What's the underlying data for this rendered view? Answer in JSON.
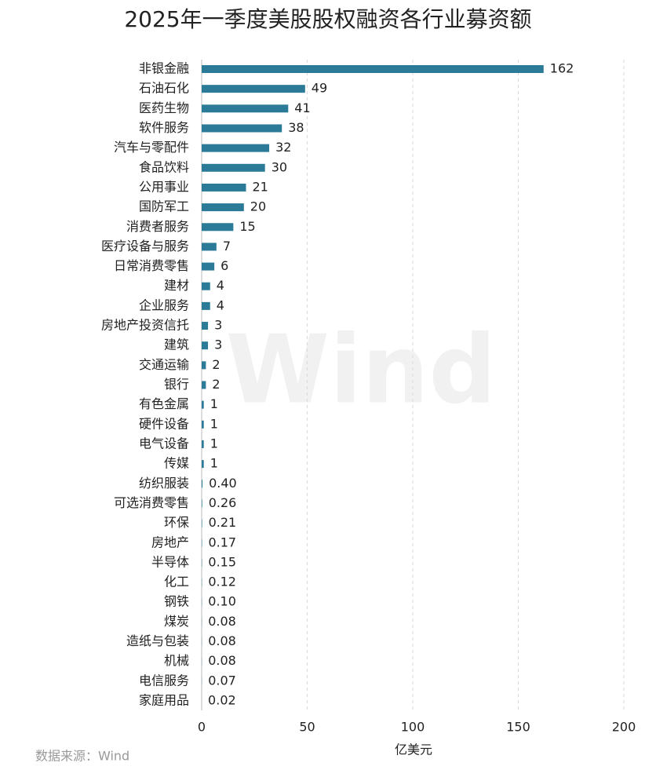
{
  "chart_data": {
    "type": "barh",
    "title": "2025年一季度美股股权融资各行业募资额",
    "x_label": "亿美元",
    "source": "数据来源：Wind",
    "watermark": "Wind",
    "color": "#2b7a98",
    "categories": [
      "非银金融",
      "石油石化",
      "医药生物",
      "软件服务",
      "汽车与零配件",
      "食品饮料",
      "公用事业",
      "国防军工",
      "消费者服务",
      "医疗设备与服务",
      "日常消费零售",
      "建材",
      "企业服务",
      "房地产投资信托",
      "建筑",
      "交通运输",
      "银行",
      "有色金属",
      "硬件设备",
      "电气设备",
      "传媒",
      "纺织服装",
      "可选消费零售",
      "环保",
      "房地产",
      "半导体",
      "化工",
      "钢铁",
      "煤炭",
      "造纸与包装",
      "机械",
      "电信服务",
      "家庭用品"
    ],
    "values": [
      162,
      49,
      41,
      38,
      32,
      30,
      21,
      20,
      15,
      7,
      6,
      4,
      4,
      3,
      3,
      2,
      2,
      1,
      1,
      1,
      1,
      0.4,
      0.26,
      0.21,
      0.17,
      0.15,
      0.12,
      0.1,
      0.08,
      0.08,
      0.08,
      0.07,
      0.02
    ],
    "value_labels": [
      "162",
      "49",
      "41",
      "38",
      "32",
      "30",
      "21",
      "20",
      "15",
      "7",
      "6",
      "4",
      "4",
      "3",
      "3",
      "2",
      "2",
      "1",
      "1",
      "1",
      "1",
      "0.40",
      "0.26",
      "0.21",
      "0.17",
      "0.15",
      "0.12",
      "0.10",
      "0.08",
      "0.08",
      "0.08",
      "0.07",
      "0.02"
    ],
    "xlim": [
      0,
      200
    ],
    "xticks": [
      0,
      50,
      100,
      150,
      200
    ],
    "grid": true
  }
}
